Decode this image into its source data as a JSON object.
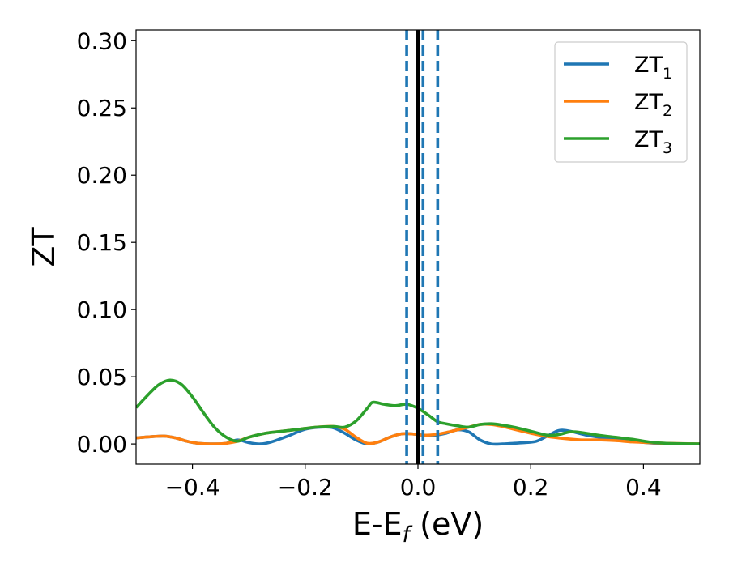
{
  "chart_data": {
    "type": "line",
    "xlabel": "E-E",
    "xlabel_sub": "f",
    "xlabel_unit": " (eV)",
    "ylabel": "ZT",
    "xlim": [
      -0.5,
      0.5
    ],
    "ylim": [
      -0.015,
      0.308
    ],
    "x_ticks": [
      -0.4,
      -0.2,
      0.0,
      0.2,
      0.4
    ],
    "x_tick_labels": [
      "−0.4",
      "−0.2",
      "0.0",
      "0.2",
      "0.4"
    ],
    "y_ticks": [
      0.0,
      0.05,
      0.1,
      0.15,
      0.2,
      0.25,
      0.3
    ],
    "y_tick_labels": [
      "0.00",
      "0.05",
      "0.10",
      "0.15",
      "0.20",
      "0.25",
      "0.30"
    ],
    "grid": false,
    "legend_position": "top-right",
    "vertical_lines": [
      {
        "x": 0.0,
        "style": "solid",
        "color": "#000000"
      },
      {
        "x": -0.02,
        "style": "dashed",
        "color": "#1f77b4"
      },
      {
        "x": 0.009,
        "style": "dashed",
        "color": "#1f77b4"
      },
      {
        "x": 0.035,
        "style": "dashed",
        "color": "#1f77b4"
      }
    ],
    "series": [
      {
        "name": "ZT",
        "sub": "1",
        "color": "#1f77b4",
        "points": [
          [
            -0.5,
            0.0045
          ],
          [
            -0.47,
            0.0055
          ],
          [
            -0.45,
            0.0058
          ],
          [
            -0.43,
            0.0045
          ],
          [
            -0.41,
            0.002
          ],
          [
            -0.39,
            0.0005
          ],
          [
            -0.36,
            0.0
          ],
          [
            -0.34,
            0.0005
          ],
          [
            -0.32,
            0.003
          ],
          [
            -0.3,
            0.001
          ],
          [
            -0.28,
            0.0
          ],
          [
            -0.26,
            0.0015
          ],
          [
            -0.23,
            0.006
          ],
          [
            -0.2,
            0.011
          ],
          [
            -0.17,
            0.0125
          ],
          [
            -0.15,
            0.012
          ],
          [
            -0.13,
            0.008
          ],
          [
            -0.11,
            0.003
          ],
          [
            -0.09,
            0.0
          ],
          [
            -0.07,
            0.0015
          ],
          [
            -0.05,
            0.005
          ],
          [
            -0.03,
            0.0075
          ],
          [
            -0.01,
            0.0075
          ],
          [
            0.01,
            0.0065
          ],
          [
            0.03,
            0.0065
          ],
          [
            0.05,
            0.008
          ],
          [
            0.07,
            0.0105
          ],
          [
            0.09,
            0.009
          ],
          [
            0.11,
            0.003
          ],
          [
            0.13,
            0.0
          ],
          [
            0.15,
            0.0
          ],
          [
            0.17,
            0.0005
          ],
          [
            0.19,
            0.001
          ],
          [
            0.21,
            0.002
          ],
          [
            0.23,
            0.006
          ],
          [
            0.25,
            0.01
          ],
          [
            0.27,
            0.0095
          ],
          [
            0.3,
            0.0065
          ],
          [
            0.33,
            0.0045
          ],
          [
            0.36,
            0.003
          ],
          [
            0.39,
            0.0015
          ],
          [
            0.42,
            0.0005
          ],
          [
            0.45,
            0.0
          ],
          [
            0.5,
            0.0
          ]
        ]
      },
      {
        "name": "ZT",
        "sub": "2",
        "color": "#ff7f0e",
        "points": [
          [
            -0.5,
            0.0045
          ],
          [
            -0.47,
            0.0055
          ],
          [
            -0.45,
            0.0058
          ],
          [
            -0.43,
            0.0045
          ],
          [
            -0.41,
            0.002
          ],
          [
            -0.39,
            0.0005
          ],
          [
            -0.36,
            0.0
          ],
          [
            -0.34,
            0.0005
          ],
          [
            -0.32,
            0.002
          ],
          [
            -0.3,
            0.005
          ],
          [
            -0.27,
            0.008
          ],
          [
            -0.24,
            0.0095
          ],
          [
            -0.21,
            0.011
          ],
          [
            -0.18,
            0.0125
          ],
          [
            -0.15,
            0.013
          ],
          [
            -0.13,
            0.011
          ],
          [
            -0.11,
            0.005
          ],
          [
            -0.09,
            0.0005
          ],
          [
            -0.07,
            0.0015
          ],
          [
            -0.05,
            0.005
          ],
          [
            -0.03,
            0.0075
          ],
          [
            -0.01,
            0.0075
          ],
          [
            0.01,
            0.0065
          ],
          [
            0.03,
            0.007
          ],
          [
            0.05,
            0.0085
          ],
          [
            0.07,
            0.0105
          ],
          [
            0.09,
            0.0125
          ],
          [
            0.11,
            0.0145
          ],
          [
            0.13,
            0.0145
          ],
          [
            0.15,
            0.013
          ],
          [
            0.17,
            0.011
          ],
          [
            0.2,
            0.008
          ],
          [
            0.23,
            0.0055
          ],
          [
            0.26,
            0.004
          ],
          [
            0.29,
            0.003
          ],
          [
            0.32,
            0.003
          ],
          [
            0.35,
            0.0025
          ],
          [
            0.38,
            0.0015
          ],
          [
            0.41,
            0.001
          ],
          [
            0.44,
            0.0005
          ],
          [
            0.5,
            0.0
          ]
        ]
      },
      {
        "name": "ZT",
        "sub": "3",
        "color": "#2ca02c",
        "points": [
          [
            -0.5,
            0.027
          ],
          [
            -0.48,
            0.036
          ],
          [
            -0.46,
            0.044
          ],
          [
            -0.44,
            0.0475
          ],
          [
            -0.42,
            0.0445
          ],
          [
            -0.4,
            0.035
          ],
          [
            -0.38,
            0.023
          ],
          [
            -0.36,
            0.012
          ],
          [
            -0.34,
            0.005
          ],
          [
            -0.32,
            0.002
          ],
          [
            -0.3,
            0.005
          ],
          [
            -0.27,
            0.008
          ],
          [
            -0.24,
            0.0095
          ],
          [
            -0.21,
            0.011
          ],
          [
            -0.18,
            0.0125
          ],
          [
            -0.15,
            0.013
          ],
          [
            -0.13,
            0.0125
          ],
          [
            -0.11,
            0.017
          ],
          [
            -0.09,
            0.0265
          ],
          [
            -0.08,
            0.031
          ],
          [
            -0.06,
            0.0295
          ],
          [
            -0.04,
            0.0285
          ],
          [
            -0.02,
            0.0295
          ],
          [
            0.0,
            0.0265
          ],
          [
            0.02,
            0.021
          ],
          [
            0.035,
            0.0165
          ],
          [
            0.05,
            0.015
          ],
          [
            0.07,
            0.0135
          ],
          [
            0.09,
            0.0125
          ],
          [
            0.11,
            0.0145
          ],
          [
            0.13,
            0.015
          ],
          [
            0.15,
            0.014
          ],
          [
            0.17,
            0.0125
          ],
          [
            0.2,
            0.0095
          ],
          [
            0.23,
            0.0065
          ],
          [
            0.25,
            0.007
          ],
          [
            0.27,
            0.009
          ],
          [
            0.29,
            0.0085
          ],
          [
            0.32,
            0.0065
          ],
          [
            0.35,
            0.005
          ],
          [
            0.38,
            0.0035
          ],
          [
            0.41,
            0.0015
          ],
          [
            0.44,
            0.0005
          ],
          [
            0.5,
            0.0
          ]
        ]
      }
    ]
  }
}
